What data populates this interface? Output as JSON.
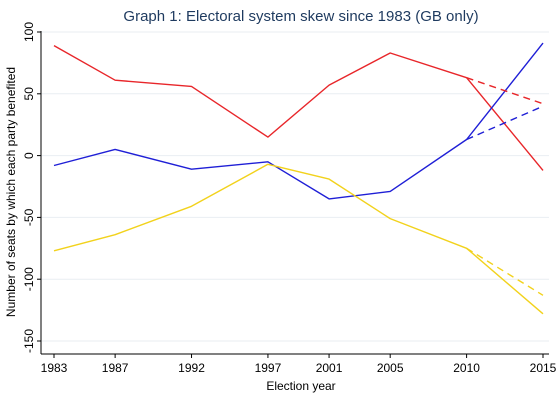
{
  "chart_data": {
    "type": "line",
    "title": "Graph 1: Electoral system skew since 1983 (GB only)",
    "xlabel": "Election year",
    "ylabel": "Number of seats by which each party benefited",
    "x": [
      1983,
      1987,
      1992,
      1997,
      2001,
      2005,
      2010,
      2015
    ],
    "x_tick_labels": [
      "1983",
      "1987",
      "1992",
      "1997",
      "2001",
      "2005",
      "2010",
      "2015"
    ],
    "ylim": [
      -150,
      100
    ],
    "y_ticks": [
      100,
      50,
      0,
      -50,
      -100,
      -150
    ],
    "y_tick_labels": [
      "100",
      "50",
      "0",
      "-50",
      "-100",
      "-150"
    ],
    "grid": true,
    "legend": "none",
    "series": [
      {
        "color": "#e8262a",
        "style": "solid",
        "x": [
          1983,
          1987,
          1992,
          1997,
          2001,
          2005,
          2010,
          2015
        ],
        "values": [
          89,
          61,
          56,
          15,
          57,
          83,
          63,
          -12
        ]
      },
      {
        "color": "#1f1fd6",
        "style": "solid",
        "x": [
          1983,
          1987,
          1992,
          1997,
          2001,
          2005,
          2010,
          2015
        ],
        "values": [
          -8,
          5,
          -11,
          -5,
          -35,
          -29,
          13,
          91
        ]
      },
      {
        "color": "#f2d21c",
        "style": "solid",
        "x": [
          1983,
          1987,
          1992,
          1997,
          2001,
          2005,
          2010,
          2015
        ],
        "values": [
          -77,
          -64,
          -41,
          -7,
          -19,
          -51,
          -75,
          -128
        ]
      },
      {
        "color": "#e8262a",
        "style": "dashed",
        "x": [
          2010,
          2015
        ],
        "values": [
          63,
          42
        ]
      },
      {
        "color": "#1f1fd6",
        "style": "dashed",
        "x": [
          2010,
          2015
        ],
        "values": [
          13,
          40
        ]
      },
      {
        "color": "#f2d21c",
        "style": "dashed",
        "x": [
          2010,
          2015
        ],
        "values": [
          -75,
          -113
        ]
      }
    ]
  }
}
